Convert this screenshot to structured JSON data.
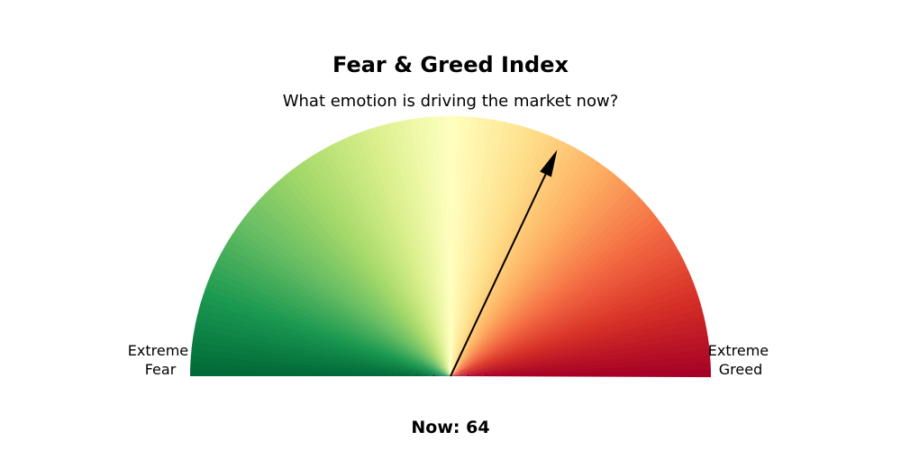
{
  "chart_data": {
    "type": "gauge",
    "title": "Fear & Greed Index",
    "subtitle": "What emotion is driving the market now?",
    "left_label": [
      "Extreme",
      "Fear"
    ],
    "right_label": [
      "Extreme",
      "Greed"
    ],
    "now_text": "Now: 64",
    "value": 64,
    "scale": [
      0,
      100
    ],
    "colormap": [
      "#006837",
      "#1a9850",
      "#66bd63",
      "#a6d96a",
      "#d9ef8b",
      "#ffffbf",
      "#fee08b",
      "#fdae61",
      "#f46d43",
      "#d73027",
      "#a50026"
    ]
  }
}
